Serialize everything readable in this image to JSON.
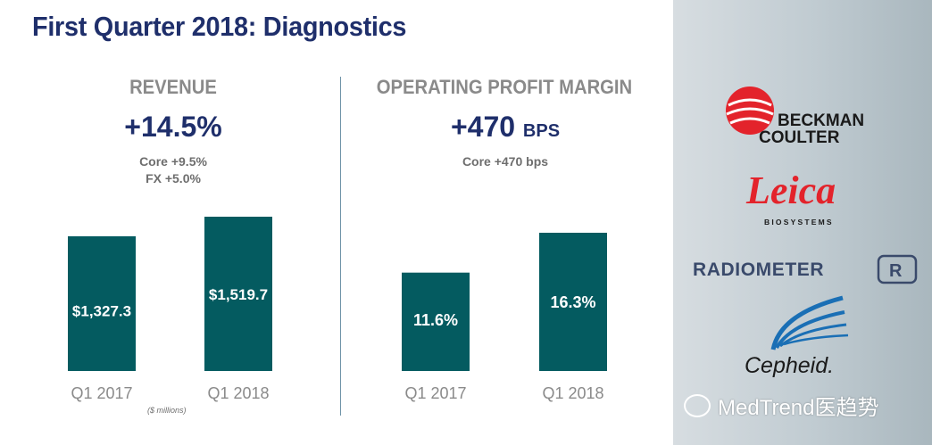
{
  "title": "First Quarter 2018: Diagnostics",
  "revenue": {
    "heading": "REVENUE",
    "headline": "+14.5%",
    "details": [
      "Core +9.5%",
      "FX +5.0%"
    ],
    "note": "($ millions)"
  },
  "margin": {
    "heading": "OPERATING PROFIT MARGIN",
    "headline_value": "+470",
    "headline_unit": "BPS",
    "details": [
      "Core +470 bps"
    ]
  },
  "chart_data": [
    {
      "type": "bar",
      "categories": [
        "Q1 2017",
        "Q1 2018"
      ],
      "values": [
        1327.3,
        1519.7
      ],
      "labels": [
        "$1,327.3",
        "$1,519.7"
      ],
      "ylabel": "$ millions"
    },
    {
      "type": "bar",
      "categories": [
        "Q1 2017",
        "Q1 2018"
      ],
      "values": [
        11.6,
        16.3
      ],
      "labels": [
        "11.6%",
        "16.3%"
      ]
    }
  ],
  "colors": {
    "bar": "#045b60",
    "title": "#1f2f6b",
    "heading": "#8a8a8a",
    "beckman_red": "#e3232b",
    "leica_red": "#e3232b",
    "cepheid_blue": "#1a6fb5"
  },
  "logos": {
    "beckman_line1": "BECKMAN",
    "beckman_line2": "COULTER",
    "leica": "Leica",
    "leica_sub": "BIOSYSTEMS",
    "radiometer": "RADIOMETER",
    "cepheid": "Cepheid."
  },
  "watermark": "MedTrend医趋势"
}
